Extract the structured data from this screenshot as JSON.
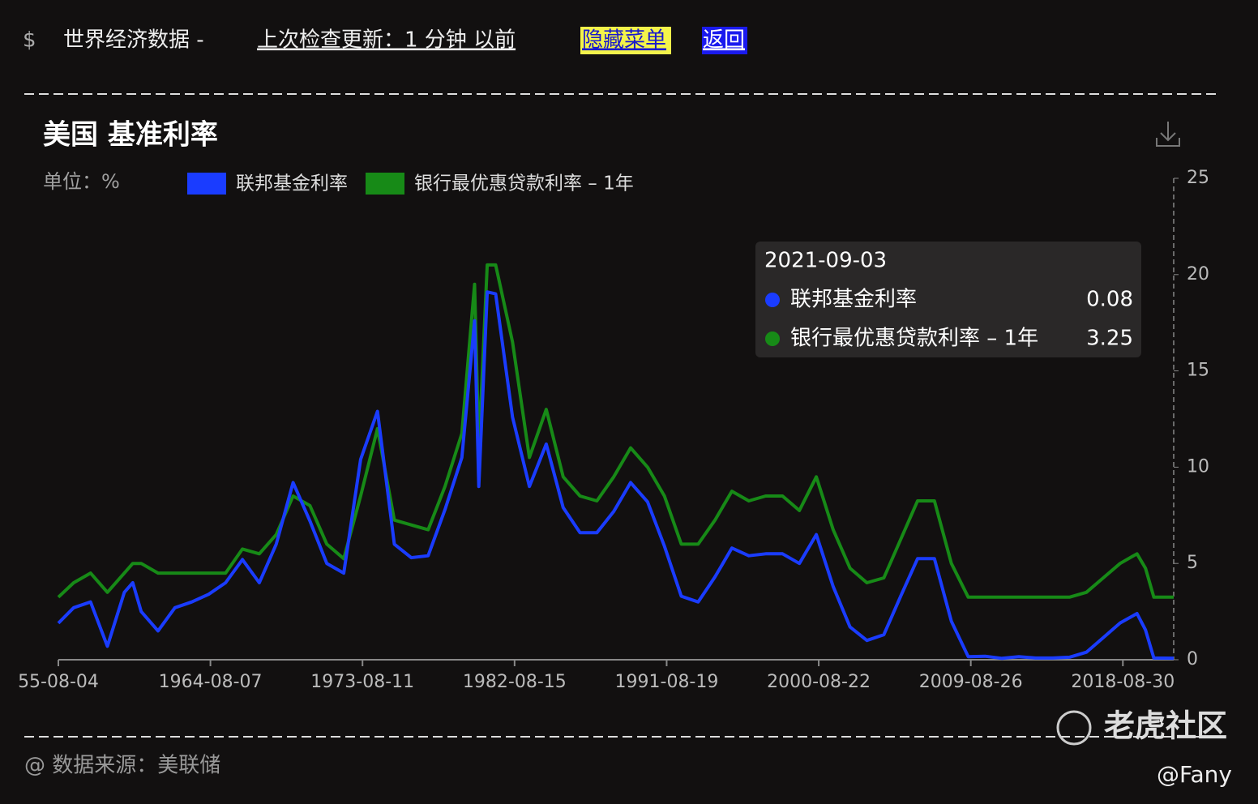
{
  "header": {
    "symbol": "$",
    "title": "世界经济数据 -",
    "status": "上次检查更新：1 分钟 以前",
    "hide_menu": "隐藏菜单",
    "back": "返回"
  },
  "chart_data": {
    "type": "line",
    "title": "美国 基准利率",
    "unit_label": "单位：%",
    "legend": "top-left",
    "x": [
      "1955-08-04",
      "1956-07-01",
      "1957-07-01",
      "1958-07-01",
      "1959-07-01",
      "1960-01-01",
      "1960-07-01",
      "1961-07-01",
      "1962-07-01",
      "1963-07-01",
      "1964-07-01",
      "1965-07-01",
      "1966-07-01",
      "1967-07-01",
      "1968-07-01",
      "1969-07-01",
      "1970-07-01",
      "1971-07-01",
      "1972-07-01",
      "1973-07-01",
      "1974-07-01",
      "1975-07-01",
      "1976-07-01",
      "1977-07-01",
      "1978-07-01",
      "1979-07-01",
      "1980-04-01",
      "1980-07-01",
      "1981-01-01",
      "1981-07-01",
      "1982-07-01",
      "1983-07-01",
      "1984-07-01",
      "1985-07-01",
      "1986-07-01",
      "1987-07-01",
      "1988-07-01",
      "1989-07-01",
      "1990-07-01",
      "1991-07-01",
      "1992-07-01",
      "1993-07-01",
      "1994-07-01",
      "1995-07-01",
      "1996-07-01",
      "1997-07-01",
      "1998-07-01",
      "1999-07-01",
      "2000-07-01",
      "2001-07-01",
      "2002-07-01",
      "2003-07-01",
      "2004-07-01",
      "2005-07-01",
      "2006-07-01",
      "2007-07-01",
      "2008-07-01",
      "2009-07-01",
      "2010-07-01",
      "2011-07-01",
      "2012-07-01",
      "2013-07-01",
      "2014-07-01",
      "2015-07-01",
      "2016-07-01",
      "2017-07-01",
      "2018-07-01",
      "2019-07-01",
      "2020-01-01",
      "2020-07-01",
      "2021-09-03"
    ],
    "series": [
      {
        "name": "联邦基金利率",
        "color": "#1a3cff",
        "values": [
          1.9,
          2.7,
          3.0,
          0.7,
          3.5,
          4.0,
          2.5,
          1.5,
          2.7,
          3.0,
          3.4,
          4.0,
          5.2,
          4.0,
          6.0,
          9.2,
          7.2,
          5.0,
          4.5,
          10.4,
          12.9,
          6.0,
          5.3,
          5.4,
          7.8,
          10.5,
          17.6,
          9.0,
          19.1,
          19.0,
          12.6,
          9.0,
          11.2,
          7.9,
          6.6,
          6.6,
          7.7,
          9.2,
          8.2,
          5.9,
          3.3,
          3.0,
          4.3,
          5.8,
          5.4,
          5.5,
          5.5,
          5.0,
          6.5,
          3.8,
          1.7,
          1.0,
          1.3,
          3.3,
          5.25,
          5.25,
          2.0,
          0.16,
          0.18,
          0.07,
          0.16,
          0.09,
          0.09,
          0.13,
          0.39,
          1.15,
          1.91,
          2.4,
          1.55,
          0.09,
          0.08
        ]
      },
      {
        "name": "银行最优惠贷款利率 – 1年",
        "color": "#178a17",
        "values": [
          3.25,
          4.0,
          4.5,
          3.5,
          4.5,
          5.0,
          5.0,
          4.5,
          4.5,
          4.5,
          4.5,
          4.5,
          5.75,
          5.5,
          6.5,
          8.5,
          8.0,
          6.0,
          5.25,
          8.5,
          12.0,
          7.25,
          7.0,
          6.75,
          9.0,
          11.75,
          19.5,
          11.0,
          20.5,
          20.5,
          16.5,
          10.5,
          13.0,
          9.5,
          8.5,
          8.25,
          9.5,
          11.0,
          10.0,
          8.5,
          6.0,
          6.0,
          7.25,
          8.75,
          8.25,
          8.5,
          8.5,
          7.75,
          9.5,
          6.75,
          4.75,
          4.0,
          4.25,
          6.25,
          8.25,
          8.25,
          5.0,
          3.25,
          3.25,
          3.25,
          3.25,
          3.25,
          3.25,
          3.25,
          3.5,
          4.25,
          5.0,
          5.5,
          4.75,
          3.25,
          3.25
        ]
      }
    ],
    "xlim": [
      "1955-08-04",
      "2021-09-03"
    ],
    "xticks": [
      {
        "value": "1955-08-04",
        "label": "55-08-04"
      },
      "1964-08-07",
      "1973-08-11",
      "1982-08-15",
      "1991-08-19",
      "2000-08-22",
      "2009-08-26",
      "2018-08-30"
    ],
    "ylim": [
      0,
      25
    ],
    "yticks": [
      0,
      5,
      10,
      15,
      20,
      25
    ],
    "tooltip": {
      "date": "2021-09-03",
      "values": [
        "0.08",
        "3.25"
      ]
    }
  },
  "footer": {
    "source": "@ 数据来源：美联储",
    "watermark": "老虎社区",
    "author": "@Fany"
  }
}
